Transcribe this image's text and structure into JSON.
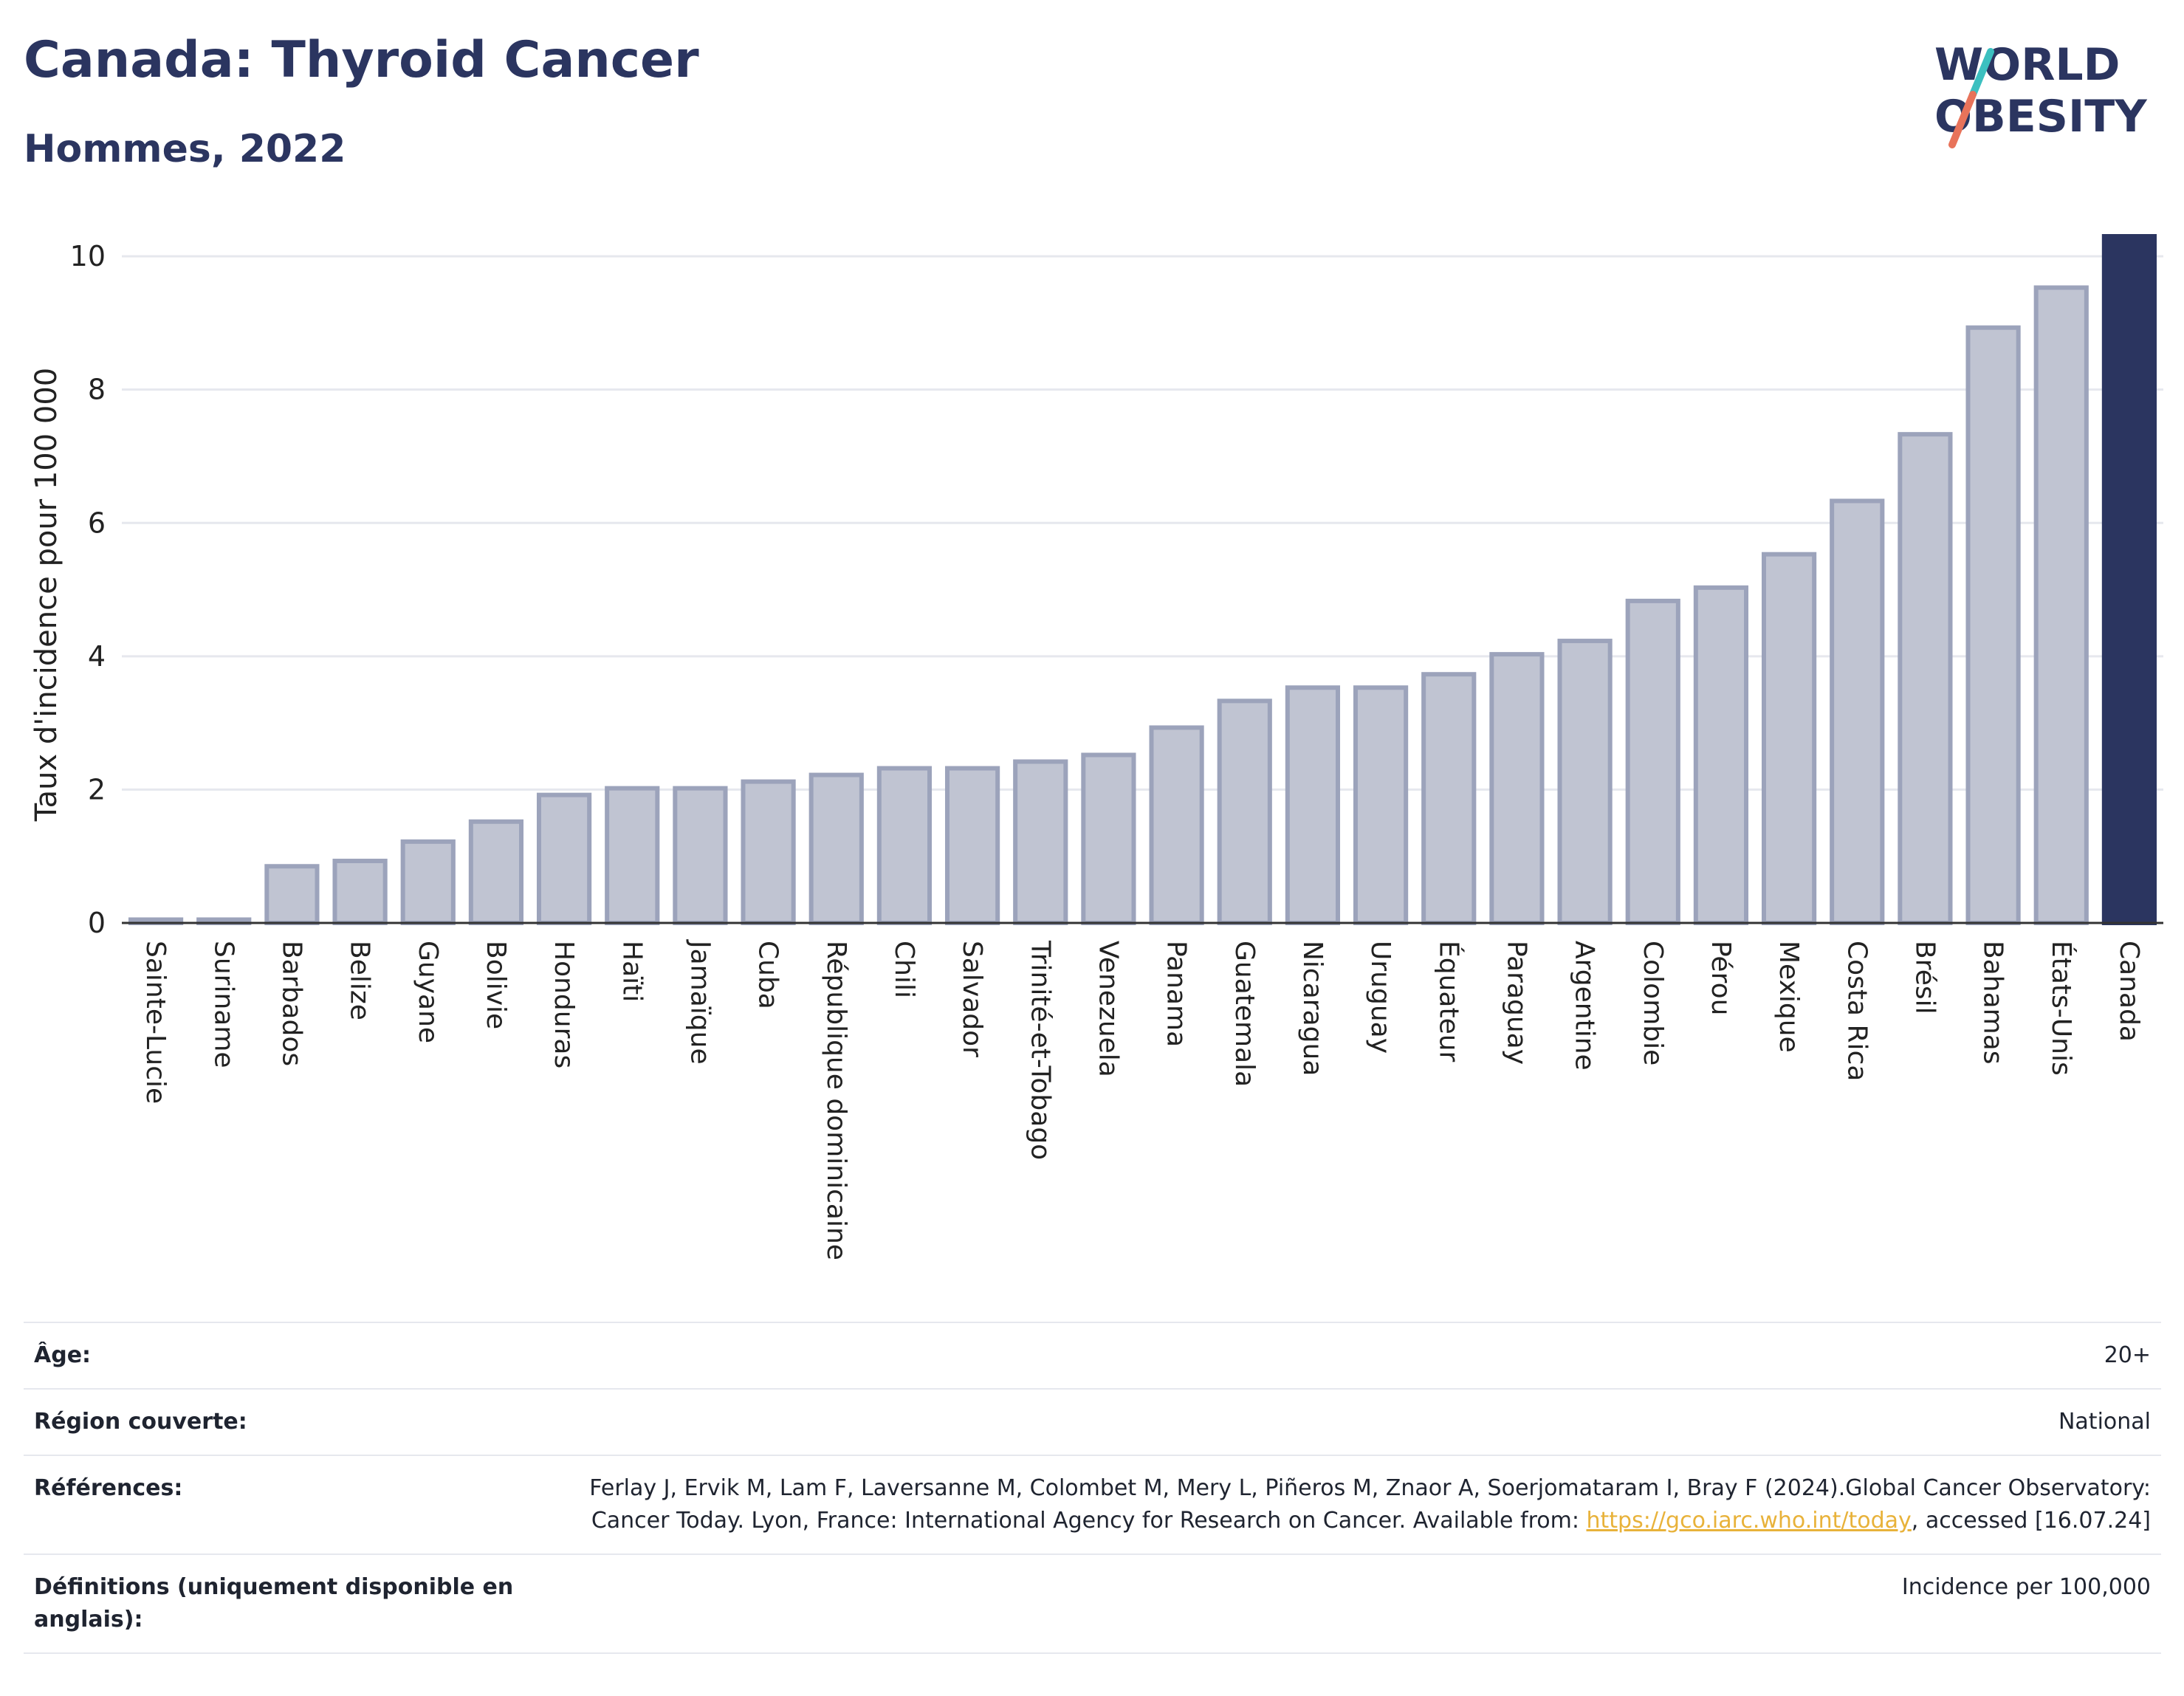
{
  "header": {
    "title": "Canada: Thyroid Cancer",
    "subtitle": "Hommes, 2022"
  },
  "logo": {
    "line1": "WORLD",
    "line2": "OBESITY",
    "slash_colors": [
      "#3cc0c0",
      "#e8735a"
    ]
  },
  "colors": {
    "bar": "#c0c4d2",
    "bar_stroke": "#9ca3bb",
    "highlight": "#2b3560",
    "grid": "#e6e8ee",
    "axis": "#333333"
  },
  "chart_data": {
    "type": "bar",
    "title": "Canada: Thyroid Cancer",
    "subtitle": "Hommes, 2022",
    "xlabel": "",
    "ylabel": "Taux d'incidence pour 100 000",
    "ylim": [
      0,
      10.3
    ],
    "yticks": [
      0,
      2,
      4,
      6,
      8,
      10
    ],
    "grid": true,
    "highlight": "Canada",
    "categories": [
      "Sainte-Lucie",
      "Suriname",
      "Barbados",
      "Belize",
      "Guyane",
      "Bolivie",
      "Honduras",
      "Haïti",
      "Jamaïque",
      "Cuba",
      "République dominicaine",
      "Chili",
      "Salvador",
      "Trinité-et-Tobago",
      "Venezuela",
      "Panama",
      "Guatemala",
      "Nicaragua",
      "Uruguay",
      "Équateur",
      "Paraguay",
      "Argentine",
      "Colombie",
      "Pérou",
      "Mexique",
      "Costa Rica",
      "Brésil",
      "Bahamas",
      "États-Unis",
      "Canada"
    ],
    "values": [
      0.05,
      0.05,
      0.85,
      0.93,
      1.22,
      1.52,
      1.92,
      2.02,
      2.02,
      2.12,
      2.22,
      2.32,
      2.32,
      2.42,
      2.52,
      2.93,
      3.33,
      3.53,
      3.53,
      3.73,
      4.03,
      4.23,
      4.83,
      5.03,
      5.53,
      6.33,
      7.33,
      8.93,
      9.53,
      10.3
    ]
  },
  "meta": {
    "age": {
      "label": "Âge:",
      "value": "20+"
    },
    "region": {
      "label": "Région couverte:",
      "value": "National"
    },
    "references": {
      "label": "Références:",
      "text_before": "Ferlay J, Ervik M, Lam F, Laversanne M, Colombet M, Mery L, Piñeros M, Znaor A, Soerjomataram I, Bray F (2024).Global Cancer Observatory: Cancer Today. Lyon, France: International Agency for Research on Cancer. Available from: ",
      "link": "https://gco.iarc.who.int/today",
      "text_after": ", accessed [16.07.24]"
    },
    "definitions": {
      "label": "Définitions (uniquement disponible en anglais):",
      "value": "Incidence per 100,000"
    }
  }
}
